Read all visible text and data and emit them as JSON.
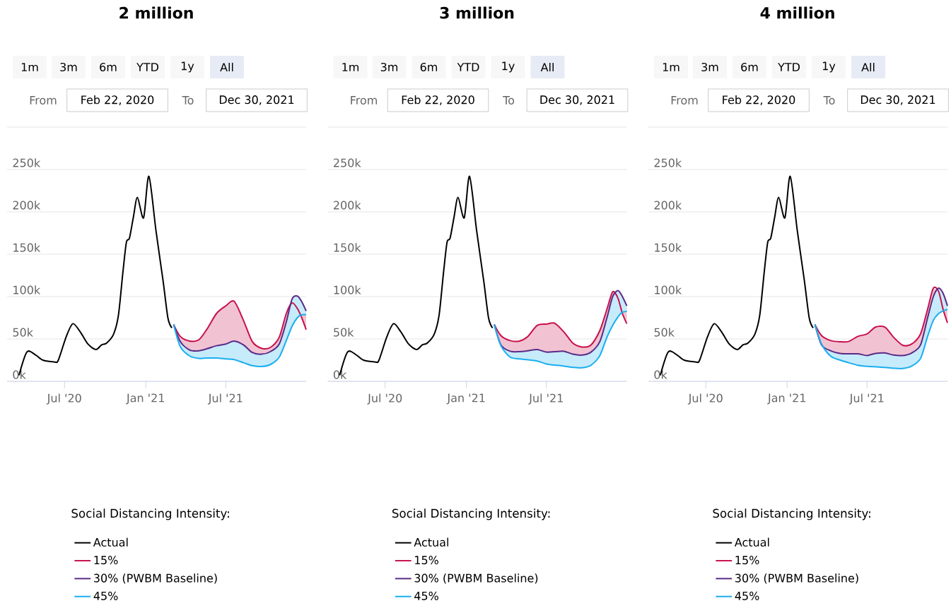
{
  "chart_data": [
    {
      "type": "line",
      "title": "2 million",
      "legend": "bottom",
      "legend_title": "Social Distancing Intensity:",
      "grid": "y",
      "annotations": [
        "1m",
        "3m",
        "6m",
        "YTD",
        "1y",
        "All",
        "From",
        "Feb 22, 2020",
        "To",
        "Dec 30, 2021"
      ],
      "xlim": [
        "2020-02-22",
        "2021-12-30"
      ],
      "ylim": [
        0,
        300000
      ],
      "xticks": [
        {
          "value": "2020-07-01",
          "label": "Jul '20"
        },
        {
          "value": "2021-01-01",
          "label": "Jan '21"
        },
        {
          "value": "2021-07-01",
          "label": "Jul '21"
        }
      ],
      "yticks": [
        {
          "value": 0,
          "label": "0k"
        },
        {
          "value": 50000,
          "label": "50k"
        },
        {
          "value": 100000,
          "label": "100k"
        },
        {
          "value": 150000,
          "label": "150k"
        },
        {
          "value": 200000,
          "label": "200k"
        },
        {
          "value": 250000,
          "label": "250k"
        },
        {
          "value": 300000,
          "label": null
        }
      ],
      "series": [
        {
          "name": "Actual",
          "color": "#000000",
          "x": [
            "2020-03-20",
            "2020-04-07",
            "2020-04-27",
            "2020-05-13",
            "2020-06-09",
            "2020-06-17",
            "2020-07-05",
            "2020-07-20",
            "2020-08-06",
            "2020-08-23",
            "2020-09-10",
            "2020-09-23",
            "2020-10-04",
            "2020-10-20",
            "2020-10-31",
            "2020-11-10",
            "2020-11-18",
            "2020-11-25",
            "2020-12-04",
            "2020-12-13",
            "2020-12-27",
            "2021-01-08",
            "2021-01-24",
            "2021-02-09",
            "2021-02-20",
            "2021-03-01"
          ],
          "values": [
            7000,
            34700,
            31000,
            25000,
            22800,
            25000,
            52800,
            68000,
            58000,
            44000,
            37500,
            43000,
            45000,
            55600,
            77800,
            127800,
            163900,
            169000,
            194000,
            217000,
            193000,
            242000,
            178000,
            119000,
            75000,
            63000
          ]
        },
        {
          "name": "15%",
          "color": "#c8104a",
          "x": [
            "2021-03-05",
            "2021-03-20",
            "2021-04-10",
            "2021-05-01",
            "2021-05-20",
            "2021-06-10",
            "2021-07-01",
            "2021-07-20",
            "2021-08-10",
            "2021-08-30",
            "2021-09-20",
            "2021-10-10",
            "2021-10-30",
            "2021-11-15",
            "2021-11-28",
            "2021-12-10",
            "2021-12-20",
            "2021-12-30"
          ],
          "values": [
            67000,
            53000,
            47500,
            49000,
            62000,
            80000,
            89000,
            94400,
            72000,
            47000,
            39000,
            40000,
            52000,
            80000,
            92500,
            86000,
            75000,
            61000
          ],
          "lower": [
            67000,
            47000,
            37000,
            36000,
            38500,
            42000,
            44000,
            47500,
            43000,
            34000,
            32000,
            35000,
            44000,
            70000,
            97000,
            100600,
            94000,
            83000
          ],
          "upper": [
            67000,
            53000,
            47500,
            49000,
            62000,
            80000,
            89000,
            94400,
            72000,
            47000,
            39000,
            40000,
            52000,
            80000,
            92500,
            86000,
            75000,
            61000
          ]
        },
        {
          "name": "30% (PWBM Baseline)",
          "color": "#5b2a86",
          "x": [
            "2021-03-05",
            "2021-03-20",
            "2021-04-10",
            "2021-05-01",
            "2021-05-20",
            "2021-06-10",
            "2021-07-01",
            "2021-07-20",
            "2021-08-10",
            "2021-08-30",
            "2021-09-20",
            "2021-10-10",
            "2021-10-30",
            "2021-11-15",
            "2021-11-28",
            "2021-12-10",
            "2021-12-20",
            "2021-12-30"
          ],
          "values": [
            67000,
            47000,
            37000,
            36000,
            38500,
            42000,
            44000,
            47500,
            43000,
            34000,
            32000,
            35000,
            44000,
            70000,
            97000,
            100600,
            94000,
            83000
          ]
        },
        {
          "name": "45%",
          "color": "#1aaeef",
          "x": [
            "2021-03-05",
            "2021-03-20",
            "2021-04-10",
            "2021-05-01",
            "2021-05-20",
            "2021-06-10",
            "2021-07-01",
            "2021-07-20",
            "2021-08-10",
            "2021-08-30",
            "2021-09-20",
            "2021-10-10",
            "2021-10-30",
            "2021-11-15",
            "2021-11-28",
            "2021-12-10",
            "2021-12-20",
            "2021-12-30"
          ],
          "values": [
            67000,
            41000,
            30000,
            27000,
            27500,
            27500,
            26500,
            25700,
            22000,
            18500,
            17500,
            19800,
            28500,
            48000,
            65000,
            75000,
            78500,
            78600
          ],
          "lower": [
            67000,
            41000,
            30000,
            27000,
            27500,
            27500,
            26500,
            25700,
            22000,
            18500,
            17500,
            19800,
            28500,
            48000,
            65000,
            75000,
            78500,
            78600
          ],
          "upper": [
            67000,
            47000,
            37000,
            36000,
            38500,
            42000,
            44000,
            47500,
            43000,
            34000,
            32000,
            35000,
            44000,
            70000,
            97000,
            100600,
            94000,
            83000
          ]
        }
      ]
    },
    {
      "type": "line",
      "title": "3 million",
      "legend": "bottom",
      "legend_title": "Social Distancing Intensity:",
      "grid": "y",
      "annotations": [
        "1m",
        "3m",
        "6m",
        "YTD",
        "1y",
        "All",
        "From",
        "Feb 22, 2020",
        "To",
        "Dec 30, 2021"
      ],
      "xlim": [
        "2020-02-22",
        "2021-12-30"
      ],
      "ylim": [
        0,
        300000
      ],
      "xticks": [
        {
          "value": "2020-07-01",
          "label": "Jul '20"
        },
        {
          "value": "2021-01-01",
          "label": "Jan '21"
        },
        {
          "value": "2021-07-01",
          "label": "Jul '21"
        }
      ],
      "yticks": [
        {
          "value": 0,
          "label": "0k"
        },
        {
          "value": 50000,
          "label": "50k"
        },
        {
          "value": 100000,
          "label": "100k"
        },
        {
          "value": 150000,
          "label": "150k"
        },
        {
          "value": 200000,
          "label": "200k"
        },
        {
          "value": 250000,
          "label": "250k"
        },
        {
          "value": 300000,
          "label": null
        }
      ],
      "series": [
        {
          "name": "Actual",
          "color": "#000000",
          "x": [
            "2020-03-20",
            "2020-04-07",
            "2020-04-27",
            "2020-05-13",
            "2020-06-09",
            "2020-06-17",
            "2020-07-05",
            "2020-07-20",
            "2020-08-06",
            "2020-08-23",
            "2020-09-10",
            "2020-09-23",
            "2020-10-04",
            "2020-10-20",
            "2020-10-31",
            "2020-11-10",
            "2020-11-18",
            "2020-11-25",
            "2020-12-04",
            "2020-12-13",
            "2020-12-27",
            "2021-01-08",
            "2021-01-24",
            "2021-02-09",
            "2021-02-20",
            "2021-03-01"
          ],
          "values": [
            7000,
            34700,
            31000,
            25000,
            22800,
            25000,
            52800,
            68000,
            58000,
            44000,
            37500,
            43000,
            45000,
            55600,
            77800,
            127800,
            163900,
            169000,
            194000,
            217000,
            193000,
            242000,
            178000,
            119000,
            75000,
            63000
          ]
        },
        {
          "name": "15%",
          "color": "#c8104a",
          "x": [
            "2021-03-05",
            "2021-03-20",
            "2021-04-10",
            "2021-05-01",
            "2021-05-20",
            "2021-06-10",
            "2021-07-01",
            "2021-07-20",
            "2021-08-10",
            "2021-08-30",
            "2021-09-20",
            "2021-10-10",
            "2021-10-30",
            "2021-11-15",
            "2021-11-28",
            "2021-12-10",
            "2021-12-20",
            "2021-12-30"
          ],
          "values": [
            67000,
            54000,
            48000,
            47500,
            53000,
            66000,
            67500,
            68500,
            58000,
            45000,
            40500,
            43000,
            60000,
            85000,
            105600,
            98000,
            80000,
            68000
          ],
          "lower": [
            67000,
            43000,
            35500,
            35000,
            36000,
            37500,
            34500,
            35000,
            35500,
            32000,
            31000,
            34500,
            47000,
            75000,
            100000,
            107000,
            100000,
            89000
          ],
          "upper": [
            67000,
            54000,
            48000,
            47500,
            53000,
            66000,
            67500,
            68500,
            58000,
            45000,
            40500,
            43000,
            60000,
            85000,
            105600,
            98000,
            80000,
            68000
          ]
        },
        {
          "name": "30% (PWBM Baseline)",
          "color": "#5b2a86",
          "x": [
            "2021-03-05",
            "2021-03-20",
            "2021-04-10",
            "2021-05-01",
            "2021-05-20",
            "2021-06-10",
            "2021-07-01",
            "2021-07-20",
            "2021-08-10",
            "2021-08-30",
            "2021-09-20",
            "2021-10-10",
            "2021-10-30",
            "2021-11-15",
            "2021-11-28",
            "2021-12-10",
            "2021-12-20",
            "2021-12-30"
          ],
          "values": [
            67000,
            43000,
            35500,
            35000,
            36000,
            37500,
            34500,
            35000,
            35500,
            32000,
            31000,
            34500,
            47000,
            75000,
            100000,
            107000,
            100000,
            89000
          ]
        },
        {
          "name": "45%",
          "color": "#1aaeef",
          "x": [
            "2021-03-05",
            "2021-03-20",
            "2021-04-10",
            "2021-05-01",
            "2021-05-20",
            "2021-06-10",
            "2021-07-01",
            "2021-07-20",
            "2021-08-10",
            "2021-08-30",
            "2021-09-20",
            "2021-10-10",
            "2021-10-30",
            "2021-11-15",
            "2021-11-28",
            "2021-12-10",
            "2021-12-20",
            "2021-12-30"
          ],
          "values": [
            67000,
            42000,
            28500,
            26500,
            25500,
            24000,
            20500,
            19200,
            18000,
            16500,
            16000,
            19000,
            30500,
            52000,
            66000,
            76000,
            81500,
            82500
          ],
          "lower": [
            67000,
            42000,
            28500,
            26500,
            25500,
            24000,
            20500,
            19200,
            18000,
            16500,
            16000,
            19000,
            30500,
            52000,
            66000,
            76000,
            81500,
            82500
          ],
          "upper": [
            67000,
            43000,
            35500,
            35000,
            36000,
            37500,
            34500,
            35000,
            35500,
            32000,
            31000,
            34500,
            47000,
            75000,
            100000,
            107000,
            100000,
            89000
          ]
        }
      ]
    },
    {
      "type": "line",
      "title": "4 million",
      "legend": "bottom",
      "legend_title": "Social Distancing Intensity:",
      "grid": "y",
      "annotations": [
        "1m",
        "3m",
        "6m",
        "YTD",
        "1y",
        "All",
        "From",
        "Feb 22, 2020",
        "To",
        "Dec 30, 2021"
      ],
      "xlim": [
        "2020-02-22",
        "2021-12-30"
      ],
      "ylim": [
        0,
        300000
      ],
      "xticks": [
        {
          "value": "2020-07-01",
          "label": "Jul '20"
        },
        {
          "value": "2021-01-01",
          "label": "Jan '21"
        },
        {
          "value": "2021-07-01",
          "label": "Jul '21"
        }
      ],
      "yticks": [
        {
          "value": 0,
          "label": "0k"
        },
        {
          "value": 50000,
          "label": "50k"
        },
        {
          "value": 100000,
          "label": "100k"
        },
        {
          "value": 150000,
          "label": "150k"
        },
        {
          "value": 200000,
          "label": "200k"
        },
        {
          "value": 250000,
          "label": "250k"
        },
        {
          "value": 300000,
          "label": null
        }
      ],
      "series": [
        {
          "name": "Actual",
          "color": "#000000",
          "x": [
            "2020-03-20",
            "2020-04-07",
            "2020-04-27",
            "2020-05-13",
            "2020-06-09",
            "2020-06-17",
            "2020-07-05",
            "2020-07-20",
            "2020-08-06",
            "2020-08-23",
            "2020-09-10",
            "2020-09-23",
            "2020-10-04",
            "2020-10-20",
            "2020-10-31",
            "2020-11-10",
            "2020-11-18",
            "2020-11-25",
            "2020-12-04",
            "2020-12-13",
            "2020-12-27",
            "2021-01-08",
            "2021-01-24",
            "2021-02-09",
            "2021-02-20",
            "2021-03-01"
          ],
          "values": [
            7000,
            34700,
            31000,
            25000,
            22800,
            25000,
            52800,
            68000,
            58000,
            44000,
            37500,
            43000,
            45000,
            55600,
            77800,
            127800,
            163900,
            169000,
            194000,
            217000,
            193000,
            242000,
            178000,
            119000,
            75000,
            63000
          ]
        },
        {
          "name": "15%",
          "color": "#c8104a",
          "x": [
            "2021-03-05",
            "2021-03-20",
            "2021-04-10",
            "2021-05-01",
            "2021-05-20",
            "2021-06-10",
            "2021-07-01",
            "2021-07-20",
            "2021-08-10",
            "2021-08-30",
            "2021-09-20",
            "2021-10-10",
            "2021-10-30",
            "2021-11-15",
            "2021-11-28",
            "2021-12-10",
            "2021-12-20",
            "2021-12-30"
          ],
          "values": [
            67000,
            54000,
            48000,
            46700,
            47000,
            53000,
            56000,
            64000,
            64000,
            52000,
            42500,
            44000,
            56000,
            85000,
            110000,
            106000,
            85000,
            69000
          ],
          "lower": [
            67000,
            43000,
            36000,
            33000,
            32500,
            32500,
            30500,
            33000,
            33500,
            31000,
            30500,
            33500,
            43000,
            75000,
            100000,
            110000,
            104000,
            89000
          ],
          "upper": [
            67000,
            54000,
            48000,
            46700,
            47000,
            53000,
            56000,
            64000,
            64000,
            52000,
            42500,
            44000,
            56000,
            85000,
            110000,
            106000,
            85000,
            69000
          ]
        },
        {
          "name": "30% (PWBM Baseline)",
          "color": "#5b2a86",
          "x": [
            "2021-03-05",
            "2021-03-20",
            "2021-04-10",
            "2021-05-01",
            "2021-05-20",
            "2021-06-10",
            "2021-07-01",
            "2021-07-20",
            "2021-08-10",
            "2021-08-30",
            "2021-09-20",
            "2021-10-10",
            "2021-10-30",
            "2021-11-15",
            "2021-11-28",
            "2021-12-10",
            "2021-12-20",
            "2021-12-30"
          ],
          "values": [
            67000,
            43000,
            36000,
            33000,
            32500,
            32500,
            30500,
            33000,
            33500,
            31000,
            30500,
            33500,
            43000,
            75000,
            100000,
            110000,
            104000,
            89000
          ]
        },
        {
          "name": "45%",
          "color": "#1aaeef",
          "x": [
            "2021-03-05",
            "2021-03-20",
            "2021-04-10",
            "2021-05-01",
            "2021-05-20",
            "2021-06-10",
            "2021-07-01",
            "2021-07-20",
            "2021-08-10",
            "2021-08-30",
            "2021-09-20",
            "2021-10-10",
            "2021-10-30",
            "2021-11-15",
            "2021-11-28",
            "2021-12-10",
            "2021-12-20",
            "2021-12-30"
          ],
          "values": [
            67000,
            44000,
            29500,
            25000,
            22000,
            19000,
            17700,
            17200,
            16500,
            15500,
            15200,
            18000,
            27000,
            53000,
            72000,
            80000,
            83000,
            85000
          ],
          "lower": [
            67000,
            44000,
            29500,
            25000,
            22000,
            19000,
            17700,
            17200,
            16500,
            15500,
            15200,
            18000,
            27000,
            53000,
            72000,
            80000,
            83000,
            85000
          ],
          "upper": [
            67000,
            43000,
            36000,
            33000,
            32500,
            32500,
            30500,
            33000,
            33500,
            31000,
            30500,
            33500,
            43000,
            75000,
            100000,
            110000,
            104000,
            89000
          ]
        }
      ]
    }
  ]
}
